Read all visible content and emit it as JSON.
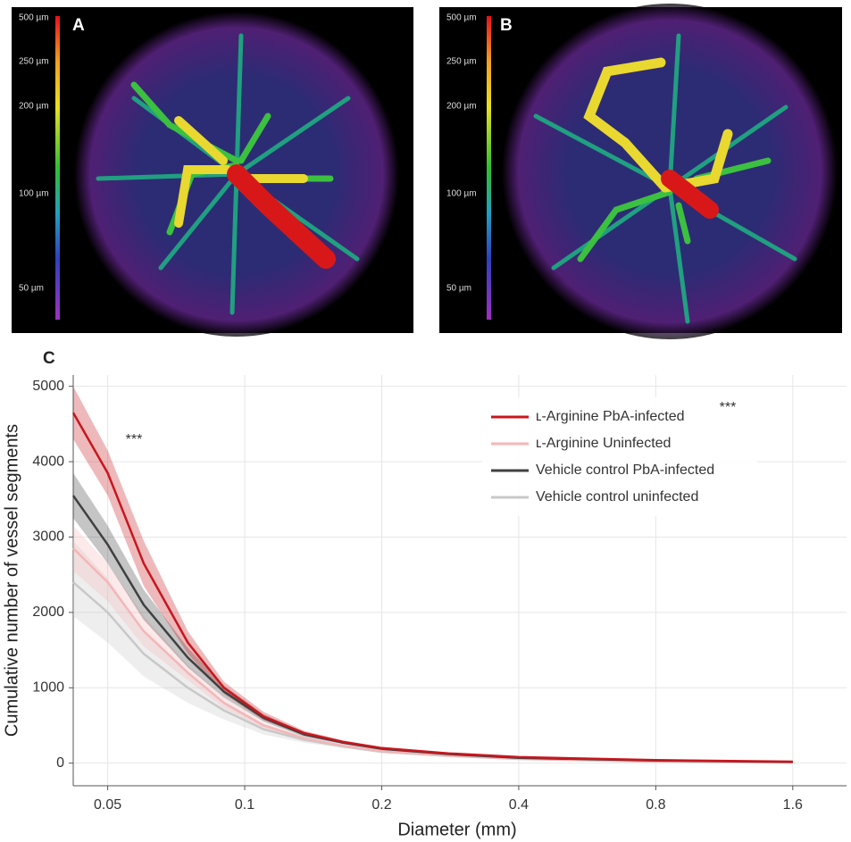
{
  "panels": [
    {
      "label": "A",
      "scale_labels": [
        "500 µm",
        "250 µm",
        "200 µm",
        "100 µm",
        "50 µm"
      ]
    },
    {
      "label": "B",
      "scale_labels": [
        "500 µm",
        "250 µm",
        "200 µm",
        "100 µm",
        "50 µm"
      ]
    }
  ],
  "chart_data": {
    "type": "line",
    "panel_label": "C",
    "xlabel": "Diameter (mm)",
    "ylabel": "Cumulative number of vessel segments",
    "xscale": "log",
    "xlim": [
      0.042,
      2.1
    ],
    "xticks": [
      0.05,
      0.1,
      0.2,
      0.4,
      0.8,
      1.6
    ],
    "ylim": [
      -300,
      5150
    ],
    "yticks": [
      0,
      1000,
      2000,
      3000,
      4000,
      5000
    ],
    "grid": true,
    "x": [
      0.042,
      0.05,
      0.06,
      0.075,
      0.09,
      0.11,
      0.135,
      0.165,
      0.2,
      0.28,
      0.4,
      0.8,
      1.6
    ],
    "series": [
      {
        "name": "ʟ-Arginine PbA-infected",
        "color": "#c8161d",
        "values": [
          4650,
          3850,
          2650,
          1600,
          1000,
          620,
          400,
          280,
          200,
          130,
          80,
          40,
          20
        ],
        "upper": [
          5000,
          4150,
          2950,
          1750,
          1080,
          680,
          430,
          300,
          215,
          140,
          85,
          45,
          25
        ],
        "lower": [
          4300,
          3550,
          2350,
          1450,
          920,
          570,
          370,
          260,
          185,
          120,
          75,
          35,
          15
        ]
      },
      {
        "name": "ʟ-Arginine Uninfected",
        "color": "#f4b6b8",
        "values": [
          2850,
          2400,
          1750,
          1200,
          800,
          500,
          330,
          230,
          160,
          100,
          60,
          25,
          10
        ],
        "upper": [
          3150,
          2650,
          1950,
          1300,
          870,
          540,
          355,
          245,
          170,
          105,
          65,
          30,
          15
        ],
        "lower": [
          2550,
          2150,
          1550,
          1100,
          730,
          460,
          305,
          215,
          150,
          95,
          55,
          20,
          5
        ]
      },
      {
        "name": "Vehicle control PbA-infected",
        "color": "#404040",
        "values": [
          3550,
          2900,
          2100,
          1400,
          950,
          600,
          380,
          270,
          190,
          120,
          70,
          35,
          15
        ],
        "upper": [
          3850,
          3150,
          2300,
          1530,
          1030,
          650,
          410,
          290,
          205,
          130,
          78,
          40,
          20
        ],
        "lower": [
          3250,
          2650,
          1900,
          1270,
          870,
          550,
          350,
          250,
          175,
          110,
          62,
          30,
          10
        ]
      },
      {
        "name": "Vehicle control uninfected",
        "color": "#c8c8c8",
        "values": [
          2400,
          2000,
          1450,
          1000,
          700,
          450,
          310,
          220,
          150,
          95,
          55,
          20,
          10
        ],
        "upper": [
          2950,
          2450,
          1750,
          1200,
          820,
          520,
          350,
          240,
          165,
          105,
          62,
          25,
          15
        ],
        "lower": [
          1950,
          1600,
          1150,
          800,
          580,
          380,
          270,
          200,
          135,
          85,
          48,
          15,
          5
        ]
      }
    ],
    "annotations": [
      {
        "text": "***"
      },
      {
        "text": "***"
      }
    ]
  }
}
